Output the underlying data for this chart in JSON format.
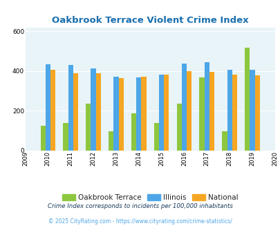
{
  "title": "Oakbrook Terrace Violent Crime Index",
  "title_color": "#1a6faf",
  "years": [
    2010,
    2011,
    2012,
    2013,
    2014,
    2015,
    2016,
    2017,
    2018,
    2019
  ],
  "oakbrook": [
    125,
    138,
    235,
    97,
    188,
    138,
    235,
    368,
    97,
    517
  ],
  "illinois": [
    435,
    430,
    413,
    373,
    368,
    383,
    438,
    443,
    407,
    407
  ],
  "national": [
    407,
    390,
    390,
    365,
    373,
    383,
    400,
    395,
    383,
    379
  ],
  "bar_colors": {
    "oakbrook": "#8dc63f",
    "illinois": "#4da6e8",
    "national": "#f5a623"
  },
  "bg_color": "#e8f4f8",
  "ylim": [
    0,
    620
  ],
  "yticks": [
    0,
    200,
    400,
    600
  ],
  "xticks_range": [
    2009,
    2010,
    2011,
    2012,
    2013,
    2014,
    2015,
    2016,
    2017,
    2018,
    2019,
    2020
  ],
  "footnote1": "Crime Index corresponds to incidents per 100,000 inhabitants",
  "footnote2": "© 2025 CityRating.com - https://www.cityrating.com/crime-statistics/",
  "footnote1_color": "#1a3a5c",
  "footnote2_color": "#4da6e8",
  "legend_labels": [
    "Oakbrook Terrace",
    "Illinois",
    "National"
  ],
  "bar_width": 0.22
}
